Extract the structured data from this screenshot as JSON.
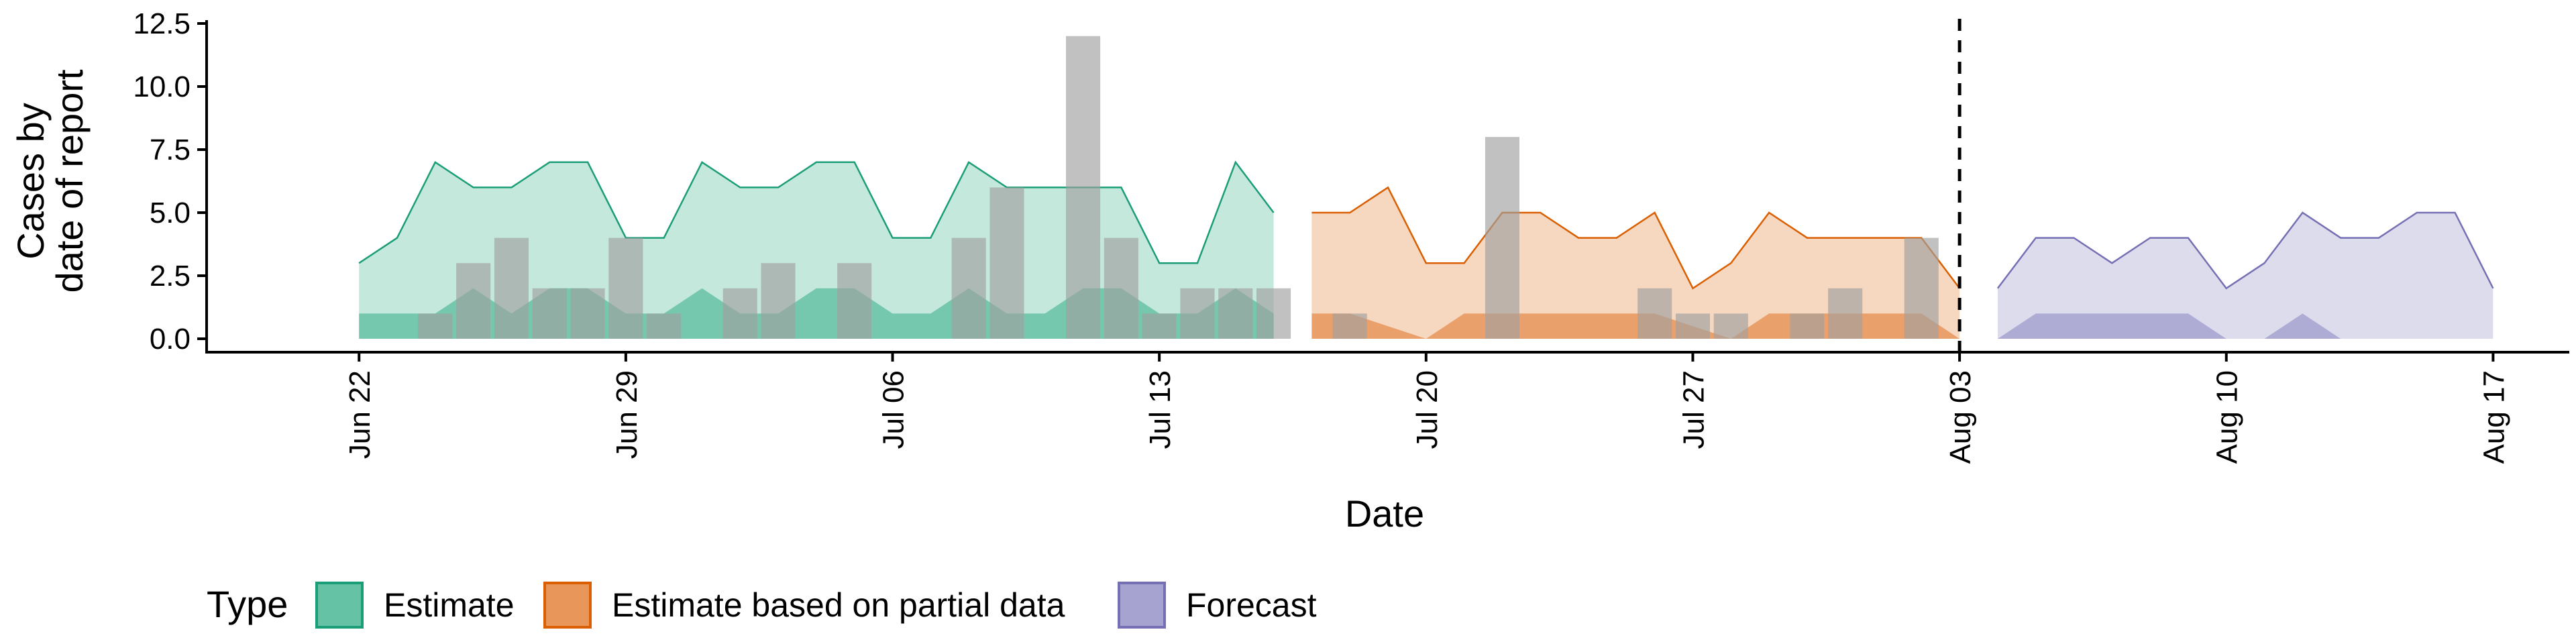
{
  "chart_data": {
    "type": "area",
    "title": "",
    "xlabel": "Date",
    "ylabel": [
      "Cases by",
      "date of report"
    ],
    "x_range": [
      "2020-06-18",
      "2020-08-19"
    ],
    "ylim": [
      0,
      12.5
    ],
    "y_ticks": [
      {
        "value": 0,
        "label": "0.0"
      },
      {
        "value": 2.5,
        "label": "2.5"
      },
      {
        "value": 5,
        "label": "5.0"
      },
      {
        "value": 7.5,
        "label": "7.5"
      },
      {
        "value": 10,
        "label": "10.0"
      },
      {
        "value": 12.5,
        "label": "12.5"
      }
    ],
    "x_ticks": [
      {
        "date": "2020-06-22",
        "label": "Jun 22"
      },
      {
        "date": "2020-06-29",
        "label": "Jun 29"
      },
      {
        "date": "2020-07-06",
        "label": "Jul 06"
      },
      {
        "date": "2020-07-13",
        "label": "Jul 13"
      },
      {
        "date": "2020-07-20",
        "label": "Jul 20"
      },
      {
        "date": "2020-07-27",
        "label": "Jul 27"
      },
      {
        "date": "2020-08-03",
        "label": "Aug 03"
      },
      {
        "date": "2020-08-10",
        "label": "Aug 10"
      },
      {
        "date": "2020-08-17",
        "label": "Aug 17"
      }
    ],
    "vline_date": "2020-08-03",
    "grid": false,
    "legend": {
      "title": "Type",
      "position": "bottom",
      "entries": [
        {
          "label": "Estimate",
          "fill": "#66c2a5",
          "stroke": "#1b9e77"
        },
        {
          "label": "Estimate based on partial data",
          "fill": "#e8965a",
          "stroke": "#d95f02"
        },
        {
          "label": "Forecast",
          "fill": "#a6a3d0",
          "stroke": "#7570b3"
        }
      ]
    },
    "observed_bars": {
      "color": "#a0a0a0",
      "points": [
        {
          "date": "2020-06-24",
          "value": 1
        },
        {
          "date": "2020-06-25",
          "value": 3
        },
        {
          "date": "2020-06-26",
          "value": 4
        },
        {
          "date": "2020-06-27",
          "value": 2
        },
        {
          "date": "2020-06-28",
          "value": 2
        },
        {
          "date": "2020-06-29",
          "value": 4
        },
        {
          "date": "2020-06-30",
          "value": 1
        },
        {
          "date": "2020-07-02",
          "value": 2
        },
        {
          "date": "2020-07-03",
          "value": 3
        },
        {
          "date": "2020-07-05",
          "value": 3
        },
        {
          "date": "2020-07-08",
          "value": 4
        },
        {
          "date": "2020-07-09",
          "value": 6
        },
        {
          "date": "2020-07-11",
          "value": 12
        },
        {
          "date": "2020-07-12",
          "value": 4
        },
        {
          "date": "2020-07-13",
          "value": 1
        },
        {
          "date": "2020-07-14",
          "value": 2
        },
        {
          "date": "2020-07-15",
          "value": 2
        },
        {
          "date": "2020-07-16",
          "value": 2
        },
        {
          "date": "2020-07-18",
          "value": 1
        },
        {
          "date": "2020-07-22",
          "value": 8
        },
        {
          "date": "2020-07-26",
          "value": 2
        },
        {
          "date": "2020-07-27",
          "value": 1
        },
        {
          "date": "2020-07-28",
          "value": 1
        },
        {
          "date": "2020-07-30",
          "value": 1
        },
        {
          "date": "2020-07-31",
          "value": 2
        },
        {
          "date": "2020-08-02",
          "value": 4
        }
      ]
    },
    "series": [
      {
        "name": "Estimate",
        "dates": [
          "2020-06-22",
          "2020-06-23",
          "2020-06-24",
          "2020-06-25",
          "2020-06-26",
          "2020-06-27",
          "2020-06-28",
          "2020-06-29",
          "2020-06-30",
          "2020-07-01",
          "2020-07-02",
          "2020-07-03",
          "2020-07-04",
          "2020-07-05",
          "2020-07-06",
          "2020-07-07",
          "2020-07-08",
          "2020-07-09",
          "2020-07-10",
          "2020-07-11",
          "2020-07-12",
          "2020-07-13",
          "2020-07-14",
          "2020-07-15",
          "2020-07-16"
        ],
        "upper_outer": [
          3,
          4,
          7,
          6,
          6,
          7,
          7,
          4,
          4,
          7,
          6,
          6,
          7,
          7,
          4,
          4,
          7,
          6,
          6,
          6,
          6,
          3,
          3,
          7,
          5
        ],
        "upper_inner": [
          1,
          1,
          1,
          2,
          1,
          2,
          2,
          1,
          1,
          2,
          1,
          1,
          2,
          2,
          1,
          1,
          2,
          1,
          1,
          2,
          2,
          1,
          1,
          2,
          1
        ],
        "lower": [
          0,
          0,
          0,
          0,
          0,
          0,
          0,
          0,
          0,
          0,
          0,
          0,
          0,
          0,
          0,
          0,
          0,
          0,
          0,
          0,
          0,
          0,
          0,
          0,
          0
        ]
      },
      {
        "name": "Estimate based on partial data",
        "dates": [
          "2020-07-17",
          "2020-07-18",
          "2020-07-19",
          "2020-07-20",
          "2020-07-21",
          "2020-07-22",
          "2020-07-23",
          "2020-07-24",
          "2020-07-25",
          "2020-07-26",
          "2020-07-27",
          "2020-07-28",
          "2020-07-29",
          "2020-07-30",
          "2020-07-31",
          "2020-08-01",
          "2020-08-02",
          "2020-08-03"
        ],
        "upper_outer": [
          5,
          5,
          6,
          3,
          3,
          5,
          5,
          4,
          4,
          5,
          2,
          3,
          5,
          4,
          4,
          4,
          4,
          2
        ],
        "upper_inner": [
          1,
          1,
          0.5,
          0,
          1,
          1,
          1,
          1,
          1,
          1,
          0.5,
          0,
          1,
          1,
          1,
          1,
          1,
          0
        ],
        "lower": [
          0,
          0,
          0,
          0,
          0,
          0,
          0,
          0,
          0,
          0,
          0,
          0,
          0,
          0,
          0,
          0,
          0,
          0
        ]
      },
      {
        "name": "Forecast",
        "dates": [
          "2020-08-04",
          "2020-08-05",
          "2020-08-06",
          "2020-08-07",
          "2020-08-08",
          "2020-08-09",
          "2020-08-10",
          "2020-08-11",
          "2020-08-12",
          "2020-08-13",
          "2020-08-14",
          "2020-08-15",
          "2020-08-16",
          "2020-08-17"
        ],
        "upper_outer": [
          2,
          4,
          4,
          3,
          4,
          4,
          2,
          3,
          5,
          4,
          4,
          5,
          5,
          2
        ],
        "upper_inner": [
          0,
          1,
          1,
          1,
          1,
          1,
          0,
          0,
          1,
          0,
          0,
          0,
          0,
          0
        ],
        "lower": [
          0,
          0,
          0,
          0,
          0,
          0,
          0,
          0,
          0,
          0,
          0,
          0,
          0,
          0
        ]
      }
    ]
  }
}
